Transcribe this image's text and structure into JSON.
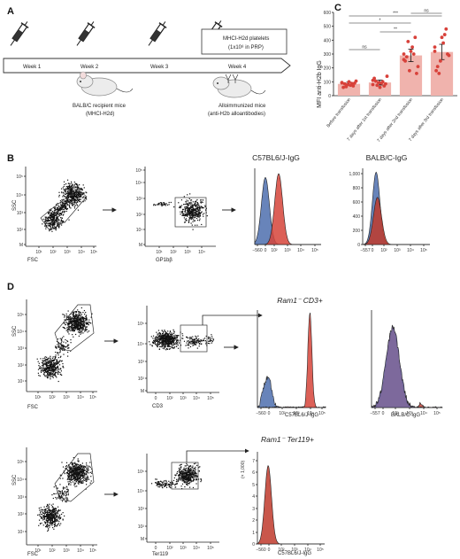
{
  "panel_labels": {
    "a": "A",
    "b": "B",
    "c": "C",
    "d": "D"
  },
  "timeline": {
    "weeks": [
      "Week 1",
      "Week 2",
      "Week 3",
      "Week 4"
    ],
    "inject_box": "MHCI-H2d platelets",
    "inject_sub": "(1x10⁸ in PRP)",
    "recipient_line1": "BALB/C recipient mice",
    "recipient_line2": "(MHCI-H2d)",
    "immunized_line1": "Alloimmunized mice",
    "immunized_line2": "(anti-H2b alloantibodies)"
  },
  "chart_data": {
    "type": "bar",
    "title": "",
    "ylabel": "MFI anti-H2b IgG",
    "ylim": [
      0,
      600
    ],
    "yticks": [
      0,
      100,
      200,
      300,
      400,
      500,
      600
    ],
    "categories": [
      "Before transfusion",
      "7 days after 1st transfusion",
      "7 days after 2nd transfusion",
      "7 days after 3rd transfusion"
    ],
    "values": [
      85,
      95,
      290,
      315
    ],
    "errors": [
      12,
      18,
      45,
      55
    ],
    "points": [
      [
        95,
        80,
        70,
        60,
        100,
        90,
        85,
        75,
        105,
        65,
        88,
        92
      ],
      [
        110,
        95,
        70,
        125,
        60,
        85,
        105,
        90,
        140,
        75,
        100,
        80
      ],
      [
        300,
        180,
        420,
        250,
        320,
        160,
        280,
        350,
        210,
        390,
        300,
        260
      ],
      [
        320,
        250,
        480,
        180,
        420,
        300,
        210,
        380,
        290,
        160,
        440,
        350
      ]
    ],
    "significance": [
      {
        "from": 0,
        "to": 3,
        "label": "***"
      },
      {
        "from": 0,
        "to": 2,
        "label": "*"
      },
      {
        "from": 1,
        "to": 2,
        "label": "**"
      },
      {
        "from": 0,
        "to": 1,
        "label": "ns"
      },
      {
        "from": 2,
        "to": 3,
        "label": "ns"
      }
    ]
  },
  "panel_b": {
    "hist1_title": "C57BL6/J-IgG",
    "hist2_title": "BALB/C-IgG",
    "ssc": "SSC",
    "fsc": "FSC",
    "gp": "GP1bβ",
    "y_hist2": [
      "0",
      "200",
      "400",
      "600",
      "800",
      "1,000"
    ]
  },
  "panel_d": {
    "title1": "Ram1⁻ CD3+",
    "title2": "Ram1⁻ Ter119+",
    "cd3": "CD3",
    "ter": "Ter119",
    "x1": "C57BL6/J-IgG",
    "x2": "BALB/C-IgG",
    "x3": "C57BL6/J-IgG",
    "ymult": "(× 1,000)"
  }
}
